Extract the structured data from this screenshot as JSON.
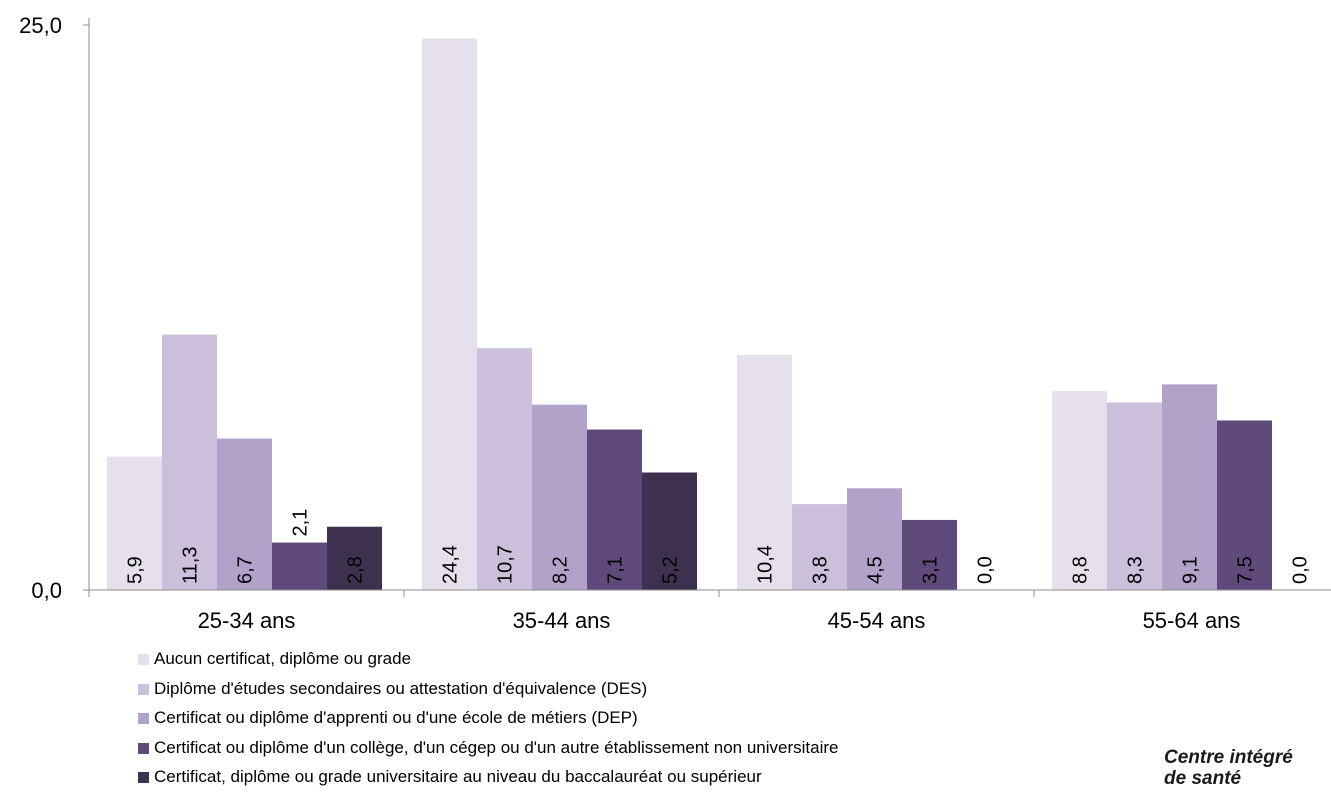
{
  "chart_data": {
    "type": "bar",
    "categories": [
      "25-34 ans",
      "35-44 ans",
      "45-54 ans",
      "55-64 ans"
    ],
    "series": [
      {
        "name": "Aucun certificat, diplôme ou grade",
        "color": "#e6dfec",
        "values": [
          5.9,
          24.4,
          10.4,
          8.8
        ],
        "labels": [
          "5,9",
          "24,4",
          "10,4",
          "8,8"
        ]
      },
      {
        "name": "Diplôme d'études secondaires ou attestation d'équivalence (DES)",
        "color": "#cbbfdb",
        "values": [
          11.3,
          10.7,
          3.8,
          8.3
        ],
        "labels": [
          "11,3",
          "10,7",
          "3,8",
          "8,3"
        ]
      },
      {
        "name": "Certificat ou diplôme d'apprenti ou d'une école de métiers (DEP)",
        "color": "#b2a1c9",
        "values": [
          6.7,
          8.2,
          4.5,
          9.1
        ],
        "labels": [
          "6,7",
          "8,2",
          "4,5",
          "9,1"
        ]
      },
      {
        "name": "Certificat ou diplôme d'un collège, d'un cégep ou d'un autre établissement non universitaire",
        "color": "#5f4a7b",
        "values": [
          2.1,
          7.1,
          3.1,
          7.5
        ],
        "labels": [
          "2,1",
          "7,1",
          "3,1",
          "7,5"
        ]
      },
      {
        "name": "Certificat, diplôme ou grade universitaire au niveau du baccalauréat ou supérieur",
        "color": "#3e3150",
        "values": [
          2.8,
          5.2,
          0.0,
          0.0
        ],
        "labels": [
          "2,8",
          "5,2",
          "0,0",
          "0,0"
        ]
      }
    ],
    "ylim": [
      0,
      25
    ],
    "yticks": [
      "0,0",
      "25,0"
    ],
    "grid": false,
    "legend_position": "bottom-left"
  },
  "watermark": {
    "line1": "Centre intégré",
    "line2": "de santé"
  }
}
